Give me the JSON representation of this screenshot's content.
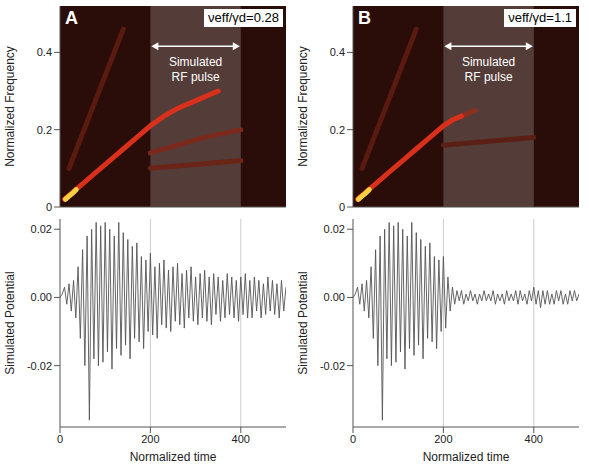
{
  "chart_data": [
    {
      "type": "spectrogram",
      "panel_label": "A",
      "ylabel": "Normalized Frequency",
      "xlim": [
        0,
        500
      ],
      "xticks": [
        0,
        200,
        400
      ],
      "ylim": [
        0,
        0.52
      ],
      "yticks": [
        0,
        0.2,
        0.4
      ],
      "tick_labels": "y",
      "series": [
        {
          "color": "#5a1a10",
          "x": [
            20,
            60,
            100,
            140
          ],
          "values": [
            0.1,
            0.22,
            0.34,
            0.46
          ]
        },
        {
          "color": "#6a2418",
          "x": [
            200,
            300,
            400
          ],
          "values": [
            0.1,
            0.11,
            0.12
          ]
        },
        {
          "color": "#7a2a1c",
          "x": [
            200,
            260,
            320,
            400
          ],
          "values": [
            0.14,
            0.16,
            0.18,
            0.2
          ]
        },
        {
          "color": "#d8301a",
          "x": [
            10,
            25,
            50,
            80,
            110,
            140,
            170,
            200,
            230,
            260,
            290,
            320,
            350
          ],
          "values": [
            0.02,
            0.035,
            0.06,
            0.09,
            0.12,
            0.15,
            0.18,
            0.21,
            0.235,
            0.255,
            0.27,
            0.285,
            0.3
          ]
        },
        {
          "color": "#f8d040",
          "x": [
            12,
            20,
            28,
            36
          ],
          "values": [
            0.02,
            0.028,
            0.036,
            0.045
          ]
        }
      ],
      "annotations": [
        {
          "text": "νeff/γd=0.28"
        },
        {
          "text": "Simulated RF pulse",
          "x_start": 200,
          "x_end": 400
        }
      ]
    },
    {
      "type": "line",
      "xlabel": "Normalized time",
      "ylabel": "Simulated Potential",
      "xlim": [
        0,
        500
      ],
      "xticks": [
        0,
        200,
        400
      ],
      "ylim": [
        -0.038,
        0.023
      ],
      "yticks": [
        -0.02,
        {
          "value": 0,
          "label": "0.00"
        },
        0.02
      ],
      "color": "#555555",
      "x": [
        0,
        5,
        10,
        15,
        20,
        25,
        30,
        35,
        40,
        45,
        50,
        55,
        60,
        65,
        70,
        75,
        80,
        85,
        90,
        95,
        100,
        105,
        110,
        115,
        120,
        125,
        130,
        135,
        140,
        145,
        150,
        155,
        160,
        165,
        170,
        175,
        180,
        185,
        190,
        195,
        200,
        205,
        210,
        215,
        220,
        225,
        230,
        235,
        240,
        245,
        250,
        255,
        260,
        265,
        270,
        275,
        280,
        285,
        290,
        295,
        300,
        305,
        310,
        315,
        320,
        325,
        330,
        335,
        340,
        345,
        350,
        355,
        360,
        365,
        370,
        375,
        380,
        385,
        390,
        395,
        400,
        405,
        410,
        415,
        420,
        425,
        430,
        435,
        440,
        445,
        450,
        455,
        460,
        465,
        470,
        475,
        480,
        485,
        490,
        495,
        500
      ],
      "values": [
        0,
        0.001,
        0.003,
        -0.002,
        0.004,
        -0.004,
        0.005,
        -0.006,
        0.009,
        -0.012,
        0.014,
        -0.02,
        0.018,
        -0.036,
        0.02,
        -0.018,
        0.022,
        -0.02,
        0.021,
        -0.019,
        0.022,
        -0.016,
        0.02,
        -0.021,
        0.018,
        -0.015,
        0.022,
        -0.017,
        0.019,
        -0.014,
        0.017,
        -0.018,
        0.015,
        -0.012,
        0.016,
        -0.013,
        0.012,
        -0.015,
        0.011,
        -0.01,
        0.013,
        -0.011,
        0.009,
        -0.012,
        0.01,
        -0.008,
        0.011,
        -0.009,
        0.008,
        -0.01,
        0.009,
        -0.007,
        0.01,
        -0.008,
        0.007,
        -0.009,
        0.008,
        -0.006,
        0.009,
        -0.007,
        0.006,
        -0.008,
        0.007,
        -0.006,
        0.008,
        -0.007,
        0.006,
        -0.008,
        0.007,
        -0.005,
        0.006,
        -0.007,
        0.005,
        -0.006,
        0.007,
        -0.005,
        0.006,
        -0.006,
        0.005,
        -0.007,
        0.006,
        -0.005,
        0.007,
        -0.006,
        0.005,
        -0.006,
        0.006,
        -0.004,
        0.005,
        -0.006,
        0.004,
        -0.005,
        0.006,
        -0.004,
        0.005,
        -0.005,
        0.004,
        -0.006,
        0.005,
        -0.004,
        0.003
      ],
      "annotations": [
        {
          "x_start": 200,
          "x_end": 400
        }
      ]
    },
    {
      "type": "spectrogram",
      "panel_label": "B",
      "ylabel": "Normalized Frequency",
      "xlim": [
        0,
        500
      ],
      "xticks": [
        0,
        200,
        400
      ],
      "ylim": [
        0,
        0.52
      ],
      "yticks": [
        0,
        0.2,
        0.4
      ],
      "tick_labels": "y",
      "series": [
        {
          "color": "#5a1a10",
          "x": [
            20,
            60,
            100,
            140
          ],
          "values": [
            0.1,
            0.22,
            0.34,
            0.46
          ]
        },
        {
          "color": "#5a2015",
          "x": [
            200,
            300,
            400
          ],
          "values": [
            0.16,
            0.17,
            0.18
          ]
        },
        {
          "color": "#8a3020",
          "x": [
            240,
            270
          ],
          "values": [
            0.235,
            0.25
          ]
        },
        {
          "color": "#d8301a",
          "x": [
            10,
            25,
            50,
            80,
            110,
            140,
            170,
            200,
            220,
            240
          ],
          "values": [
            0.02,
            0.035,
            0.06,
            0.09,
            0.12,
            0.15,
            0.18,
            0.21,
            0.225,
            0.235
          ]
        },
        {
          "color": "#f8d040",
          "x": [
            12,
            20,
            28,
            36
          ],
          "values": [
            0.02,
            0.028,
            0.036,
            0.045
          ]
        }
      ],
      "annotations": [
        {
          "text": "νeff/γd=1.1"
        },
        {
          "text": "Simulated RF pulse",
          "x_start": 200,
          "x_end": 400
        }
      ]
    },
    {
      "type": "line",
      "xlabel": "Normalized time",
      "ylabel": "Simulated Potential",
      "xlim": [
        0,
        500
      ],
      "xticks": [
        0,
        200,
        400
      ],
      "ylim": [
        -0.038,
        0.023
      ],
      "yticks": [
        -0.02,
        {
          "value": 0,
          "label": "0.00"
        },
        0.02
      ],
      "color": "#555555",
      "x": [
        0,
        5,
        10,
        15,
        20,
        25,
        30,
        35,
        40,
        45,
        50,
        55,
        60,
        65,
        70,
        75,
        80,
        85,
        90,
        95,
        100,
        105,
        110,
        115,
        120,
        125,
        130,
        135,
        140,
        145,
        150,
        155,
        160,
        165,
        170,
        175,
        180,
        185,
        190,
        195,
        200,
        205,
        210,
        215,
        220,
        225,
        230,
        235,
        240,
        245,
        250,
        255,
        260,
        265,
        270,
        275,
        280,
        285,
        290,
        295,
        300,
        305,
        310,
        315,
        320,
        325,
        330,
        335,
        340,
        345,
        350,
        355,
        360,
        365,
        370,
        375,
        380,
        385,
        390,
        395,
        400,
        405,
        410,
        415,
        420,
        425,
        430,
        435,
        440,
        445,
        450,
        455,
        460,
        465,
        470,
        475,
        480,
        485,
        490,
        495,
        500
      ],
      "values": [
        0,
        0.001,
        0.003,
        -0.002,
        0.004,
        -0.004,
        0.005,
        -0.006,
        0.009,
        -0.012,
        0.014,
        -0.02,
        0.018,
        -0.036,
        0.02,
        -0.018,
        0.022,
        -0.02,
        0.021,
        -0.019,
        0.022,
        -0.016,
        0.02,
        -0.021,
        0.018,
        -0.015,
        0.022,
        -0.017,
        0.019,
        -0.014,
        0.017,
        -0.018,
        0.015,
        -0.012,
        0.016,
        -0.013,
        0.012,
        -0.015,
        0.011,
        -0.01,
        0.012,
        -0.009,
        0.006,
        -0.004,
        0.003,
        -0.002,
        0.002,
        -0.001,
        0.002,
        -0.002,
        0.001,
        -0.001,
        0.002,
        -0.001,
        0.001,
        -0.002,
        0.001,
        -0.001,
        0.002,
        -0.001,
        0.001,
        -0.001,
        0.002,
        -0.002,
        0.001,
        -0.001,
        0.001,
        -0.002,
        0.002,
        -0.001,
        0.001,
        -0.001,
        0.002,
        -0.002,
        0.002,
        -0.001,
        0.001,
        -0.002,
        0.002,
        -0.001,
        0.003,
        -0.002,
        0.002,
        -0.003,
        0.002,
        -0.002,
        0.002,
        -0.002,
        0.001,
        -0.002,
        0.002,
        -0.001,
        0.002,
        -0.002,
        0.001,
        -0.002,
        0.002,
        -0.001,
        0.002,
        -0.001,
        0.001
      ],
      "annotations": [
        {
          "x_start": 200,
          "x_end": 400
        }
      ]
    }
  ]
}
